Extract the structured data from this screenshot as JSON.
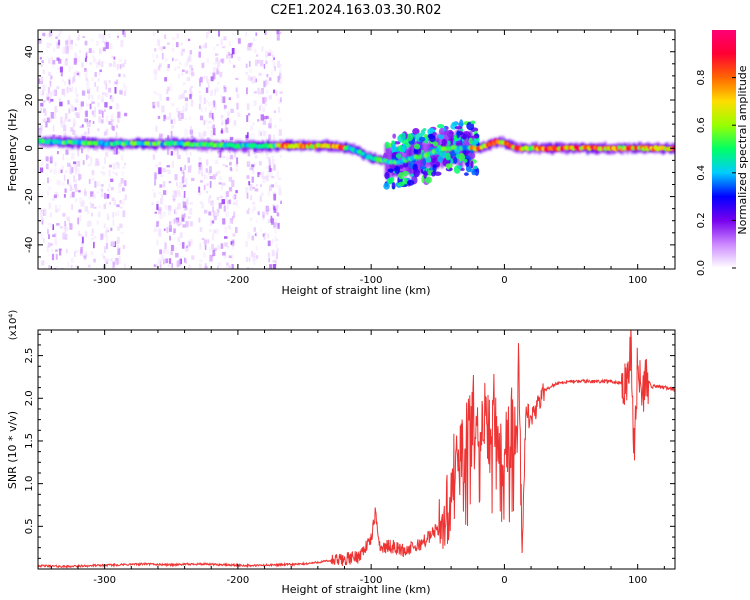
{
  "title": "C2E1.2024.163.03.30.R02",
  "colors": {
    "line": "#ee3333",
    "axis": "#000000",
    "background": "#ffffff"
  },
  "chart_data": [
    {
      "type": "heatmap",
      "xlabel": "Height of straight line (km)",
      "ylabel": "Frequency (Hz)",
      "xlim": [
        -350,
        128
      ],
      "ylim": [
        -50,
        49
      ],
      "x_ticks": [
        -300,
        -200,
        -100,
        0,
        100
      ],
      "x_tick_labels": [
        "-300",
        "-200",
        "-100",
        "0",
        "100"
      ],
      "y_ticks": [
        -40,
        -20,
        0,
        20,
        40
      ],
      "y_tick_labels": [
        "-40",
        "-20",
        "0",
        "20",
        "40"
      ],
      "colorbar": {
        "label": "Normalized spectral amplitude",
        "range": [
          0,
          1
        ],
        "ticks": [
          0.0,
          0.2,
          0.4,
          0.6,
          0.8
        ],
        "tick_labels": [
          "0.0",
          "0.2",
          "0.4",
          "0.6",
          "0.8"
        ],
        "colormap": [
          "#ffffff",
          "#cc88ff",
          "#7700ee",
          "#0000ff",
          "#00ccff",
          "#00ff66",
          "#99ff00",
          "#ffdd00",
          "#ff6600",
          "#ff0033",
          "#ff0077"
        ]
      },
      "ridge": [
        {
          "x": -350,
          "f": 3
        },
        {
          "x": -300,
          "f": 2
        },
        {
          "x": -250,
          "f": 2
        },
        {
          "x": -200,
          "f": 1
        },
        {
          "x": -170,
          "f": 1
        },
        {
          "x": -130,
          "f": 1
        },
        {
          "x": -115,
          "f": 0
        },
        {
          "x": -100,
          "f": -4
        },
        {
          "x": -85,
          "f": -6
        },
        {
          "x": -75,
          "f": -5
        },
        {
          "x": -60,
          "f": -3
        },
        {
          "x": -45,
          "f": 0
        },
        {
          "x": -35,
          "f": 0
        },
        {
          "x": -20,
          "f": 0
        },
        {
          "x": -5,
          "f": 3
        },
        {
          "x": 10,
          "f": 0
        },
        {
          "x": 50,
          "f": 0
        },
        {
          "x": 90,
          "f": 0
        },
        {
          "x": 128,
          "f": 0
        }
      ],
      "noise_bands": [
        [
          -350,
          -285
        ],
        [
          -265,
          -235
        ],
        [
          -230,
          -200
        ],
        [
          -195,
          -168
        ]
      ],
      "ridge_peak_segments": [
        [
          -170,
          -120
        ],
        [
          -25,
          0
        ],
        [
          0,
          128
        ]
      ]
    },
    {
      "type": "line",
      "xlabel": "Height of straight line (km)",
      "ylabel": "SNR (10 * v/v)",
      "y_multiplier": "(x10⁴)",
      "xlim": [
        -350,
        128
      ],
      "ylim": [
        0,
        2.8
      ],
      "x_ticks": [
        -300,
        -200,
        -100,
        0,
        100
      ],
      "x_tick_labels": [
        "-300",
        "-200",
        "-100",
        "0",
        "100"
      ],
      "y_ticks": [
        0.5,
        1.0,
        1.5,
        2.0,
        2.5
      ],
      "y_tick_labels": [
        "0.5",
        "1.0",
        "1.5",
        "2.0",
        "2.5"
      ],
      "series": [
        {
          "color": "#ee3333",
          "points": [
            [
              -350,
              0.04
            ],
            [
              -330,
              0.03
            ],
            [
              -310,
              0.04
            ],
            [
              -290,
              0.05
            ],
            [
              -270,
              0.06
            ],
            [
              -250,
              0.05
            ],
            [
              -230,
              0.06
            ],
            [
              -210,
              0.05
            ],
            [
              -190,
              0.04
            ],
            [
              -170,
              0.05
            ],
            [
              -150,
              0.06
            ],
            [
              -140,
              0.08
            ],
            [
              -130,
              0.1
            ],
            [
              -120,
              0.12
            ],
            [
              -110,
              0.15
            ],
            [
              -105,
              0.25
            ],
            [
              -100,
              0.35
            ],
            [
              -97,
              0.65
            ],
            [
              -93,
              0.25
            ],
            [
              -85,
              0.28
            ],
            [
              -75,
              0.22
            ],
            [
              -65,
              0.28
            ],
            [
              -55,
              0.4
            ],
            [
              -48,
              0.55
            ],
            [
              -42,
              0.8
            ],
            [
              -38,
              1.2
            ],
            [
              -34,
              1.5
            ],
            [
              -30,
              1.4
            ],
            [
              -26,
              1.8
            ],
            [
              -22,
              1.9
            ],
            [
              -18,
              1.5
            ],
            [
              -15,
              1.9
            ],
            [
              -12,
              1.7
            ],
            [
              -8,
              2.0
            ],
            [
              -3,
              1.5
            ],
            [
              0,
              1.4
            ],
            [
              3,
              1.6
            ],
            [
              6,
              1.8
            ],
            [
              9,
              1.5
            ],
            [
              11,
              2.6
            ],
            [
              13,
              0.4
            ],
            [
              16,
              1.8
            ],
            [
              20,
              1.8
            ],
            [
              25,
              1.9
            ],
            [
              30,
              2.1
            ],
            [
              40,
              2.18
            ],
            [
              50,
              2.2
            ],
            [
              60,
              2.2
            ],
            [
              70,
              2.2
            ],
            [
              80,
              2.2
            ],
            [
              88,
              2.18
            ],
            [
              92,
              2.3
            ],
            [
              95,
              2.7
            ],
            [
              97,
              1.35
            ],
            [
              100,
              2.45
            ],
            [
              103,
              2.0
            ],
            [
              106,
              2.3
            ],
            [
              110,
              2.14
            ],
            [
              120,
              2.13
            ],
            [
              128,
              2.1
            ]
          ]
        }
      ]
    }
  ]
}
